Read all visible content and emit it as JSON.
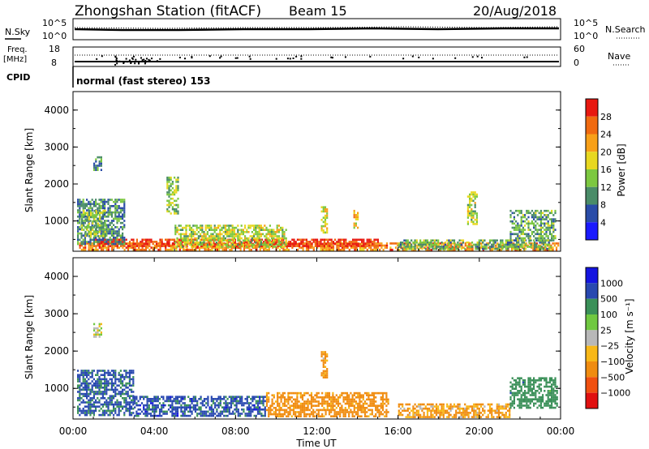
{
  "header": {
    "station": "Zhongshan Station (fitACF)",
    "beam": "Beam 15",
    "date": "20/Aug/2018"
  },
  "top_panels": {
    "nsky_label": "N.Sky",
    "nsky_ticks": [
      "10^5",
      "10^0"
    ],
    "nsearch_label": "N.Search",
    "nsearch_ticks": [
      "10^5",
      "10^0"
    ],
    "freq_label_1": "Freq.",
    "freq_label_2": "[MHz]",
    "freq_ticks": [
      "18",
      "8"
    ],
    "nave_label": "Nave",
    "nave_ticks": [
      "60",
      "0"
    ],
    "cpid_label": "CPID",
    "cpid_text": "normal (fast stereo) 153"
  },
  "x_axis": {
    "ticks": [
      "00:00",
      "04:00",
      "08:00",
      "12:00",
      "16:00",
      "20:00",
      "00:00"
    ],
    "label": "Time UT"
  },
  "colors": {
    "power": [
      "#1a1aff",
      "#2a4ca8",
      "#4a8c68",
      "#7cc840",
      "#e8d820",
      "#f8a018",
      "#f06a10",
      "#e81810"
    ],
    "velocity": [
      "#e01010",
      "#f05010",
      "#f08c10",
      "#f8b818",
      "#b8b8b8",
      "#70c840",
      "#3a9058",
      "#2848b0",
      "#1414e0"
    ]
  },
  "chart_data": [
    {
      "type": "heatmap",
      "panel": "power",
      "ylabel": "Slant Range [km]",
      "yticks": [
        "1000",
        "2000",
        "3000",
        "4000"
      ],
      "ylim": [
        180,
        4500
      ],
      "xlim": [
        0,
        24
      ],
      "colorbar_label": "Power [dB]",
      "colorbar_ticks": [
        "4",
        "8",
        "12",
        "16",
        "20",
        "24",
        "28"
      ],
      "colorbar_range": [
        0,
        32
      ],
      "regions": [
        {
          "t0": 0.3,
          "t1": 23.9,
          "r0": 200,
          "r1": 420,
          "value": 24
        },
        {
          "t0": 1.0,
          "t1": 15.0,
          "r0": 300,
          "r1": 520,
          "value": 29
        },
        {
          "t0": 0.2,
          "t1": 2.5,
          "r0": 400,
          "r1": 1600,
          "value": 10
        },
        {
          "t0": 0.4,
          "t1": 1.6,
          "r0": 600,
          "r1": 1300,
          "value": 14
        },
        {
          "t0": 1.0,
          "t1": 1.4,
          "r0": 2400,
          "r1": 2750,
          "value": 9
        },
        {
          "t0": 4.6,
          "t1": 5.2,
          "r0": 1200,
          "r1": 2200,
          "value": 14
        },
        {
          "t0": 5.0,
          "t1": 10.5,
          "r0": 300,
          "r1": 900,
          "value": 16
        },
        {
          "t0": 12.2,
          "t1": 12.5,
          "r0": 700,
          "r1": 1400,
          "value": 18
        },
        {
          "t0": 13.8,
          "t1": 14.0,
          "r0": 800,
          "r1": 1300,
          "value": 20
        },
        {
          "t0": 16.0,
          "t1": 23.5,
          "r0": 250,
          "r1": 500,
          "value": 12
        },
        {
          "t0": 19.4,
          "t1": 19.9,
          "r0": 900,
          "r1": 1800,
          "value": 16
        },
        {
          "t0": 21.5,
          "t1": 23.7,
          "r0": 500,
          "r1": 1300,
          "value": 12
        }
      ]
    },
    {
      "type": "heatmap",
      "panel": "velocity",
      "ylabel": "Slant Range [km]",
      "yticks": [
        "1000",
        "2000",
        "3000",
        "4000"
      ],
      "ylim": [
        180,
        4500
      ],
      "xlim": [
        0,
        24
      ],
      "colorbar_label": "Velocity [m s⁻¹]",
      "colorbar_ticks": [
        "1000",
        "500",
        "100",
        "25",
        "−25",
        "−100",
        "−500",
        "−1000"
      ],
      "regions": [
        {
          "t0": 0.2,
          "t1": 3.0,
          "r0": 300,
          "r1": 1500,
          "value": 600
        },
        {
          "t0": 3.0,
          "t1": 9.5,
          "r0": 250,
          "r1": 800,
          "value": 700
        },
        {
          "t0": 1.0,
          "t1": 1.4,
          "r0": 2400,
          "r1": 2750,
          "value": 0
        },
        {
          "t0": 9.5,
          "t1": 15.5,
          "r0": 250,
          "r1": 900,
          "value": -200
        },
        {
          "t0": 12.2,
          "t1": 12.5,
          "r0": 1300,
          "r1": 2000,
          "value": -150
        },
        {
          "t0": 16.0,
          "t1": 21.5,
          "r0": 250,
          "r1": 600,
          "value": -120
        },
        {
          "t0": 21.5,
          "t1": 23.8,
          "r0": 500,
          "r1": 1300,
          "value": 300
        }
      ]
    }
  ]
}
